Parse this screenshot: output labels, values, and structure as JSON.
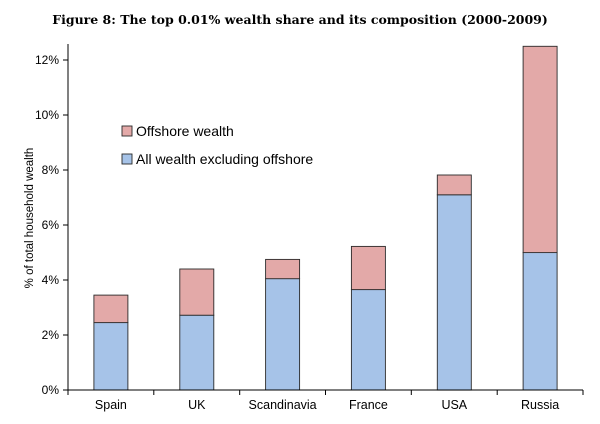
{
  "figure_title": "Figure 8: The top 0.01% wealth share and its composition (2000-2009)",
  "chart_data": {
    "type": "bar",
    "stacked": true,
    "title": "Figure 8: The top 0.01% wealth share and its composition (2000-2009)",
    "xlabel": "",
    "ylabel": "% of total household wealth",
    "categories": [
      "Spain",
      "UK",
      "Scandinavia",
      "France",
      "USA",
      "Russia"
    ],
    "series": [
      {
        "name": "All wealth excluding offshore",
        "color": "#a6c3e8",
        "values": [
          2.45,
          2.72,
          4.05,
          3.65,
          7.1,
          5.0
        ]
      },
      {
        "name": "Offshore wealth",
        "color": "#e3a9a8",
        "values": [
          1.0,
          1.68,
          0.7,
          1.57,
          0.72,
          7.5
        ]
      }
    ],
    "ylim": [
      0,
      12
    ],
    "yticks": [
      "0%",
      "2%",
      "4%",
      "6%",
      "8%",
      "10%",
      "12%"
    ],
    "ytick_values": [
      0,
      2,
      4,
      6,
      8,
      10,
      12
    ],
    "grid": false,
    "legend": {
      "placement": "top-left",
      "entries": [
        "Offshore wealth",
        "All wealth excluding offshore"
      ]
    }
  }
}
